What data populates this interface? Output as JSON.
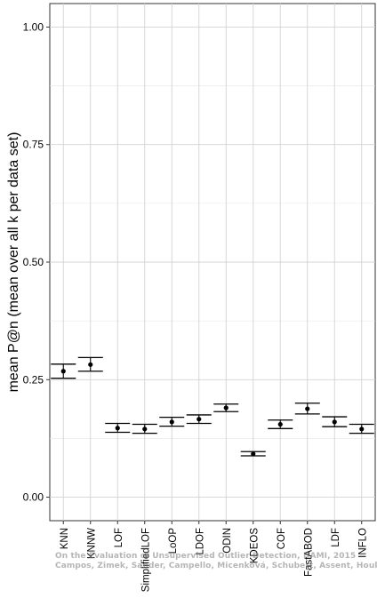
{
  "chart_data": {
    "type": "errorbar",
    "categories": [
      "KNN",
      "KNNW",
      "LOF",
      "SimplifiedLOF",
      "LoOP",
      "LDOF",
      "ODIN",
      "KDEOS",
      "COF",
      "FastABOD",
      "LDF",
      "INFLO"
    ],
    "series": [
      {
        "mean": [
          0.268,
          0.282,
          0.147,
          0.145,
          0.16,
          0.166,
          0.19,
          0.092,
          0.155,
          0.188,
          0.16,
          0.145
        ],
        "lower": [
          0.253,
          0.268,
          0.138,
          0.136,
          0.151,
          0.157,
          0.182,
          0.088,
          0.146,
          0.177,
          0.15,
          0.136
        ],
        "upper": [
          0.283,
          0.297,
          0.157,
          0.155,
          0.17,
          0.175,
          0.198,
          0.097,
          0.164,
          0.2,
          0.171,
          0.155
        ]
      }
    ],
    "title": "",
    "xlabel": "",
    "ylabel": "mean P@n (mean over all k per data set)",
    "ylim": [
      -0.05,
      1.05
    ],
    "yticks": [
      0.0,
      0.25,
      0.5,
      0.75,
      1.0
    ],
    "ytick_labels": [
      "0.00",
      "0.25",
      "0.50",
      "0.75",
      "1.00"
    ],
    "grid": true
  },
  "watermark": {
    "line1": "On the Evaluation of Unsupervised Outlier Detection, DAMI, 2015",
    "line2": "Campos, Zimek, Sander, Campello, Micenková, Schubert, Assent, Houle"
  }
}
